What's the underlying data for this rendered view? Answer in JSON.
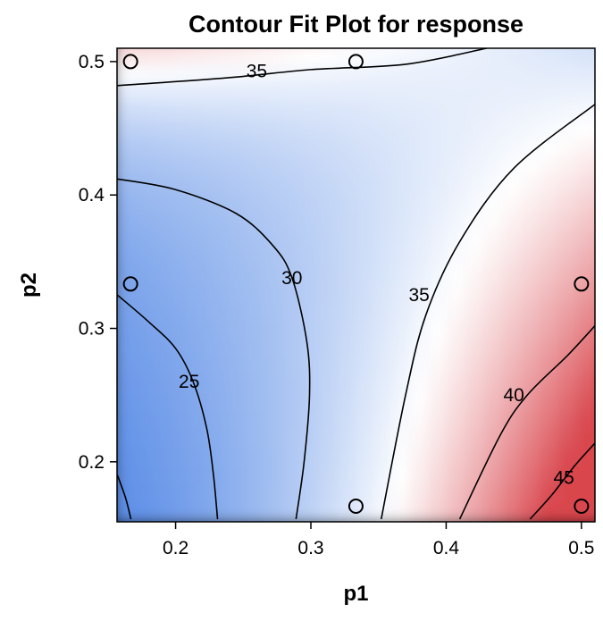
{
  "chart_data": {
    "type": "contour",
    "title": "Contour Fit Plot for response",
    "xlabel": "p1",
    "ylabel": "p2",
    "xlim": [
      0.1567,
      0.51
    ],
    "ylim": [
      0.155,
      0.51
    ],
    "x_ticks": [
      0.2,
      0.3,
      0.4,
      0.5
    ],
    "x_tick_labels": [
      "0.2",
      "0.3",
      "0.4",
      "0.5"
    ],
    "y_ticks": [
      0.2,
      0.3,
      0.4,
      0.5
    ],
    "y_tick_labels": [
      "0.2",
      "0.3",
      "0.4",
      "0.5"
    ],
    "color_scale": {
      "low": "#5b8de6",
      "mid": "#ffffff",
      "high": "#d9474e",
      "range": [
        20,
        50
      ],
      "midpoint": 35
    },
    "contours": [
      {
        "level": 25,
        "label": "25",
        "label_at": [
          0.21,
          0.26
        ],
        "points": [
          [
            0.157,
            0.325
          ],
          [
            0.18,
            0.305
          ],
          [
            0.2,
            0.285
          ],
          [
            0.213,
            0.26
          ],
          [
            0.223,
            0.225
          ],
          [
            0.228,
            0.19
          ],
          [
            0.231,
            0.157
          ]
        ]
      },
      {
        "level": 20,
        "label": "",
        "label_at": null,
        "points": [
          [
            0.157,
            0.19
          ],
          [
            0.163,
            0.173
          ],
          [
            0.167,
            0.157
          ]
        ]
      },
      {
        "level": 30,
        "label": "30",
        "label_at": [
          0.286,
          0.338
        ],
        "points": [
          [
            0.157,
            0.412
          ],
          [
            0.2,
            0.404
          ],
          [
            0.245,
            0.386
          ],
          [
            0.272,
            0.362
          ],
          [
            0.286,
            0.338
          ],
          [
            0.297,
            0.29
          ],
          [
            0.299,
            0.25
          ],
          [
            0.295,
            0.2
          ],
          [
            0.289,
            0.157
          ]
        ]
      },
      {
        "level": 35,
        "label": "35",
        "label_at": [
          0.38,
          0.325
        ],
        "points": [
          [
            0.352,
            0.157
          ],
          [
            0.37,
            0.25
          ],
          [
            0.385,
            0.31
          ],
          [
            0.41,
            0.365
          ],
          [
            0.45,
            0.42
          ],
          [
            0.51,
            0.468
          ]
        ]
      },
      {
        "level": 35,
        "label": "35",
        "label_at": [
          0.26,
          0.493
        ],
        "points": [
          [
            0.157,
            0.482
          ],
          [
            0.24,
            0.488
          ],
          [
            0.3,
            0.494
          ],
          [
            0.37,
            0.498
          ],
          [
            0.43,
            0.51
          ]
        ]
      },
      {
        "level": 40,
        "label": "40",
        "label_at": [
          0.45,
          0.25
        ],
        "points": [
          [
            0.41,
            0.157
          ],
          [
            0.44,
            0.22
          ],
          [
            0.46,
            0.25
          ],
          [
            0.49,
            0.28
          ],
          [
            0.51,
            0.302
          ]
        ]
      },
      {
        "level": 45,
        "label": "45",
        "label_at": [
          0.487,
          0.188
        ],
        "points": [
          [
            0.462,
            0.157
          ],
          [
            0.478,
            0.175
          ],
          [
            0.495,
            0.197
          ],
          [
            0.51,
            0.214
          ]
        ]
      }
    ],
    "design_points": [
      {
        "x": 0.1667,
        "y": 0.5
      },
      {
        "x": 0.3333,
        "y": 0.5
      },
      {
        "x": 0.1667,
        "y": 0.3333
      },
      {
        "x": 0.5,
        "y": 0.3333
      },
      {
        "x": 0.3333,
        "y": 0.1667
      },
      {
        "x": 0.5,
        "y": 0.1667
      }
    ]
  }
}
